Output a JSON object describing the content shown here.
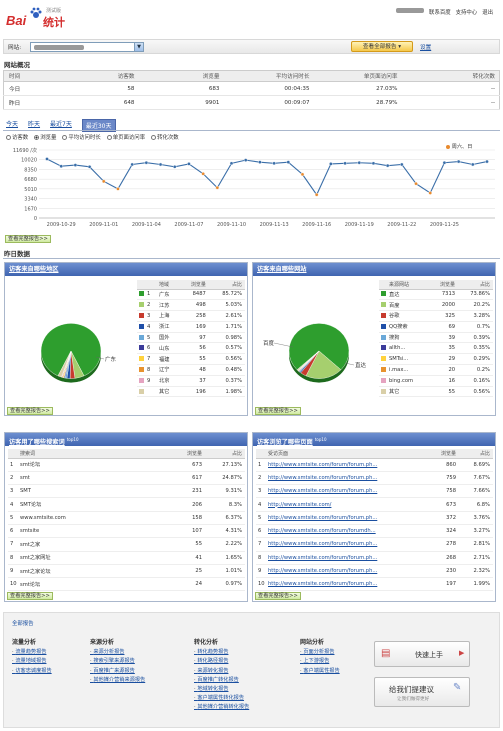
{
  "header": {
    "logo_text": "Bai",
    "logo_tongji": "统计",
    "logo_version": "测试版",
    "links": [
      "联系百度",
      "支持中心",
      "退出"
    ]
  },
  "site_bar": {
    "label": "网站:",
    "view_all_button": "查看全部报告",
    "settings_link": "设置"
  },
  "overview": {
    "title": "网站概况",
    "columns": [
      "时间",
      "访客数",
      "浏览量",
      "平均访问时长",
      "单页面访问率",
      "转化次数"
    ],
    "rows": [
      [
        "今日",
        "58",
        "683",
        "00:04:35",
        "27.03%",
        "--"
      ],
      [
        "昨日",
        "648",
        "9901",
        "00:09:07",
        "28.79%",
        "--"
      ]
    ]
  },
  "trend": {
    "tabs": [
      "今天",
      "昨天",
      "最近7天",
      "最近30天"
    ],
    "active_tab": 3,
    "metrics": [
      "访客数",
      "浏览量",
      "平均访问时长",
      "单页面访问率",
      "转化次数"
    ],
    "active_metric": 1,
    "legend": "周六、日",
    "y_ticks": [
      "11690 /次",
      "10020",
      "8350",
      "6680",
      "5010",
      "3340",
      "1670",
      "0"
    ],
    "x_ticks": [
      "2009-10-29",
      "2009-11-01",
      "2009-11-04",
      "2009-11-07",
      "2009-11-10",
      "2009-11-13",
      "2009-11-16",
      "2009-11-19",
      "2009-11-22",
      "2009-11-25"
    ],
    "more_link": "查看完整报告>>"
  },
  "chart_data": {
    "type": "line",
    "ylim": [
      0,
      11690
    ],
    "values": [
      10150,
      8900,
      9100,
      8800,
      6300,
      5000,
      9200,
      9500,
      9200,
      8800,
      9300,
      7600,
      5200,
      9400,
      9950,
      9600,
      9400,
      9600,
      7500,
      4000,
      9300,
      9400,
      9500,
      9400,
      9000,
      9200,
      5900,
      4300,
      9500,
      9700,
      9200,
      9700
    ],
    "weekend_indices": [
      4,
      5,
      11,
      12,
      18,
      19,
      26,
      27
    ]
  },
  "yesterday": {
    "title": "昨日数据"
  },
  "region_panel": {
    "title": "访客来自哪些地区",
    "columns": [
      "地域",
      "浏览量",
      "占比"
    ],
    "rows": [
      {
        "n": "1",
        "name": "广东",
        "views": "8487",
        "pct": "85.72%",
        "color": "#2e9e2e"
      },
      {
        "n": "2",
        "name": "江苏",
        "views": "498",
        "pct": "5.03%",
        "color": "#a6cf6e"
      },
      {
        "n": "3",
        "name": "上海",
        "views": "258",
        "pct": "2.61%",
        "color": "#c73b2e"
      },
      {
        "n": "4",
        "name": "浙江",
        "views": "169",
        "pct": "1.71%",
        "color": "#1f4fa8"
      },
      {
        "n": "5",
        "name": "国外",
        "views": "97",
        "pct": "0.98%",
        "color": "#6aa8d8"
      },
      {
        "n": "6",
        "name": "山东",
        "views": "56",
        "pct": "0.57%",
        "color": "#3c3c9a"
      },
      {
        "n": "7",
        "name": "福建",
        "views": "55",
        "pct": "0.56%",
        "color": "#ffd23c"
      },
      {
        "n": "8",
        "name": "辽宁",
        "views": "48",
        "pct": "0.48%",
        "color": "#e8922e"
      },
      {
        "n": "9",
        "name": "北京",
        "views": "37",
        "pct": "0.37%",
        "color": "#e5a3c0"
      },
      {
        "n": "",
        "name": "其它",
        "views": "196",
        "pct": "1.98%",
        "color": "#d9cfa8"
      }
    ],
    "pie_label": "广东",
    "more_link": "查看完整报告>>"
  },
  "source_panel": {
    "title": "访客来自哪些网站",
    "columns": [
      "来源网站",
      "浏览量",
      "占比"
    ],
    "rows": [
      {
        "name": "直达",
        "views": "7313",
        "pct": "73.86%",
        "color": "#2e9e2e"
      },
      {
        "name": "百度",
        "views": "2000",
        "pct": "20.2%",
        "color": "#a6cf6e"
      },
      {
        "name": "谷歌",
        "views": "325",
        "pct": "3.28%",
        "color": "#c73b2e"
      },
      {
        "name": "QQ搜索",
        "views": "69",
        "pct": "0.7%",
        "color": "#1f4fa8"
      },
      {
        "name": "搜狗",
        "views": "39",
        "pct": "0.39%",
        "color": "#6aa8d8"
      },
      {
        "name": "allth...",
        "views": "35",
        "pct": "0.35%",
        "color": "#3c3c9a"
      },
      {
        "name": "SMTsi...",
        "views": "29",
        "pct": "0.29%",
        "color": "#ffd23c"
      },
      {
        "name": "i.max...",
        "views": "20",
        "pct": "0.2%",
        "color": "#e8922e"
      },
      {
        "name": "bing.com",
        "views": "16",
        "pct": "0.16%",
        "color": "#e5a3c0"
      },
      {
        "name": "其它",
        "views": "55",
        "pct": "0.56%",
        "color": "#d9cfa8"
      }
    ],
    "pie_labels": [
      "百度",
      "直达"
    ],
    "more_link": "查看完整报告>>"
  },
  "keyword_panel": {
    "title": "访客用了哪些搜索词",
    "sup": "top10",
    "columns": [
      "搜索词",
      "浏览量",
      "占比"
    ],
    "rows": [
      {
        "n": "1",
        "name": "smt论坛",
        "views": "673",
        "pct": "27.13%"
      },
      {
        "n": "2",
        "name": "smt",
        "views": "617",
        "pct": "24.87%"
      },
      {
        "n": "3",
        "name": "SMT",
        "views": "231",
        "pct": "9.31%"
      },
      {
        "n": "4",
        "name": "SMT论坛",
        "views": "206",
        "pct": "8.3%"
      },
      {
        "n": "5",
        "name": "www.smtsite.com",
        "views": "158",
        "pct": "6.37%"
      },
      {
        "n": "6",
        "name": "smtsite",
        "views": "107",
        "pct": "4.31%"
      },
      {
        "n": "7",
        "name": "smt之家",
        "views": "55",
        "pct": "2.22%"
      },
      {
        "n": "8",
        "name": "smt之家网址",
        "views": "41",
        "pct": "1.65%"
      },
      {
        "n": "9",
        "name": "smt之家论坛",
        "views": "25",
        "pct": "1.01%"
      },
      {
        "n": "10",
        "name": "smt论坛",
        "views": "24",
        "pct": "0.97%"
      }
    ],
    "more_link": "查看完整报告>>"
  },
  "pages_panel": {
    "title": "访客浏览了哪些页面",
    "sup": "top10",
    "columns": [
      "受访页面",
      "浏览量",
      "占比"
    ],
    "rows": [
      {
        "n": "1",
        "name": "http://www.smtsite.com/forum/forum.ph...",
        "views": "860",
        "pct": "8.69%"
      },
      {
        "n": "2",
        "name": "http://www.smtsite.com/forum/forum.ph...",
        "views": "759",
        "pct": "7.67%"
      },
      {
        "n": "3",
        "name": "http://www.smtsite.com/forum/forum.ph...",
        "views": "758",
        "pct": "7.66%"
      },
      {
        "n": "4",
        "name": "http://www.smtsite.com/",
        "views": "673",
        "pct": "6.8%"
      },
      {
        "n": "5",
        "name": "http://www.smtsite.com/forum/forum.ph...",
        "views": "372",
        "pct": "3.76%"
      },
      {
        "n": "6",
        "name": "http://www.smtsite.com/forum/forumdh...",
        "views": "324",
        "pct": "3.27%"
      },
      {
        "n": "7",
        "name": "http://www.smtsite.com/forum/forum.ph...",
        "views": "278",
        "pct": "2.81%"
      },
      {
        "n": "8",
        "name": "http://www.smtsite.com/forum/forum.ph...",
        "views": "268",
        "pct": "2.71%"
      },
      {
        "n": "9",
        "name": "http://www.smtsite.com/forum/forum.ph...",
        "views": "230",
        "pct": "2.32%"
      },
      {
        "n": "10",
        "name": "http://www.smtsite.com/forum/forum.ph...",
        "views": "197",
        "pct": "1.99%"
      }
    ],
    "more_link": "查看完整报告>>"
  },
  "footer": {
    "all_reports": "全部报告",
    "columns": [
      {
        "title": "流量分析",
        "items": [
          "流量趋势报告",
          "流量地域报告",
          "访客忠诚度报告"
        ]
      },
      {
        "title": "来源分析",
        "items": [
          "来源分析报告",
          "搜索引擎来源报告",
          "百度推广来源报告",
          "其他媒介营销来源报告"
        ]
      },
      {
        "title": "转化分析",
        "items": [
          "转化趋势报告",
          "转化路径报告",
          "来源转化报告",
          "百度推广转化报告",
          "地域转化报告",
          "客户端属性转化报告",
          "其他媒介营销转化报告"
        ]
      },
      {
        "title": "网站分析",
        "items": [
          "页面分析报告",
          "上下游报告",
          "客户端属性报告"
        ]
      }
    ],
    "quick_start": "快速上手",
    "feedback": "给我们提建议",
    "feedback_sub": "让我们做得更好"
  }
}
